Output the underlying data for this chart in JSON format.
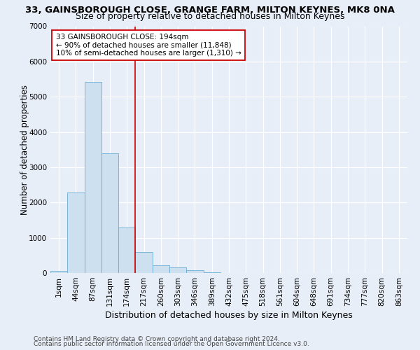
{
  "title": "33, GAINSBOROUGH CLOSE, GRANGE FARM, MILTON KEYNES, MK8 0NA",
  "subtitle": "Size of property relative to detached houses in Milton Keynes",
  "xlabel": "Distribution of detached houses by size in Milton Keynes",
  "ylabel": "Number of detached properties",
  "bar_labels": [
    "1sqm",
    "44sqm",
    "87sqm",
    "131sqm",
    "174sqm",
    "217sqm",
    "260sqm",
    "303sqm",
    "346sqm",
    "389sqm",
    "432sqm",
    "475sqm",
    "518sqm",
    "561sqm",
    "604sqm",
    "648sqm",
    "691sqm",
    "734sqm",
    "777sqm",
    "820sqm",
    "863sqm"
  ],
  "bar_values": [
    50,
    2280,
    5420,
    3400,
    1300,
    600,
    210,
    150,
    80,
    20,
    5,
    3,
    2,
    1,
    1,
    0,
    0,
    0,
    0,
    0,
    0
  ],
  "bar_color": "#cce0f0",
  "bar_edge_color": "#6aaed6",
  "vline_color": "#cc0000",
  "annotation_line1": "33 GAINSBOROUGH CLOSE: 194sqm",
  "annotation_line2": "← 90% of detached houses are smaller (11,848)",
  "annotation_line3": "10% of semi-detached houses are larger (1,310) →",
  "annotation_box_color": "#ffffff",
  "annotation_box_edge": "#cc0000",
  "ylim": [
    0,
    7000
  ],
  "yticks": [
    0,
    1000,
    2000,
    3000,
    4000,
    5000,
    6000,
    7000
  ],
  "footer1": "Contains HM Land Registry data © Crown copyright and database right 2024.",
  "footer2": "Contains public sector information licensed under the Open Government Licence v3.0.",
  "bg_color": "#e8eef7",
  "grid_color": "#ffffff",
  "title_fontsize": 9.5,
  "subtitle_fontsize": 9,
  "ylabel_fontsize": 8.5,
  "xlabel_fontsize": 9,
  "tick_fontsize": 7.5,
  "annot_fontsize": 7.5,
  "footer_fontsize": 6.5
}
